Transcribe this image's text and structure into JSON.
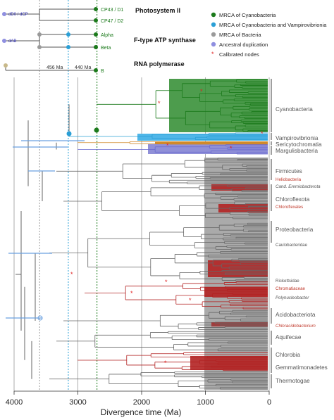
{
  "insets": {
    "labels": {
      "ps2": "Photosystem II",
      "atp": "F-type ATP synthase",
      "rnap": "RNA polymerase",
      "d0_dcp": "dD0 / dCP",
      "dab": "dAB",
      "cp43": "CP43 / D1",
      "cp47": "CP47 / D2",
      "alpha": "Alpha",
      "beta": "Beta",
      "b": "B",
      "age1": "456 Ma",
      "age2": "440 Ma"
    }
  },
  "legend": {
    "items": [
      {
        "label": "MRCA of Cyanobacteria",
        "color": "#1b7a1b",
        "shape": "circle"
      },
      {
        "label": "MRCA of Cyanobacteria and Vampirovibrionia",
        "color": "#2a9fd6",
        "shape": "circle"
      },
      {
        "label": "MRCA of Bacteria",
        "color": "#9a9a9a",
        "shape": "circle"
      },
      {
        "label": "Ancestral duplication",
        "color": "#8f8fe0",
        "shape": "circle"
      },
      {
        "label": "Calibrated nodes",
        "color": "#e02020",
        "shape": "star"
      }
    ]
  },
  "clades": [
    {
      "name": "Cyanobacteria",
      "color": "#555555",
      "style": "normal"
    },
    {
      "name": "Vampirovibrionia",
      "color": "#555555",
      "style": "normal"
    },
    {
      "name": "Sericytochromatia",
      "color": "#555555",
      "style": "normal"
    },
    {
      "name": "Margulisbacteria",
      "color": "#555555",
      "style": "normal"
    },
    {
      "name": "Firmicutes",
      "color": "#555555",
      "style": "normal"
    },
    {
      "name": "Heliobacteria",
      "color": "#c0392b",
      "style": "small"
    },
    {
      "name": "Cand. Eremiobacterota",
      "color": "#555555",
      "style": "small-italic"
    },
    {
      "name": "Chloroflexota",
      "color": "#555555",
      "style": "normal"
    },
    {
      "name": "Chloroflexales",
      "color": "#c0392b",
      "style": "small"
    },
    {
      "name": "Proteobacteria",
      "color": "#555555",
      "style": "normal"
    },
    {
      "name": "Caulobacteridae",
      "color": "#555555",
      "style": "small"
    },
    {
      "name": "Rickettsidae",
      "color": "#555555",
      "style": "small"
    },
    {
      "name": "Chromatiaceae",
      "color": "#c0392b",
      "style": "small"
    },
    {
      "name": "Polynucleobacter",
      "color": "#555555",
      "style": "small-italic"
    },
    {
      "name": "Acidobacteriota",
      "color": "#555555",
      "style": "normal"
    },
    {
      "name": "Chloracidobacterium",
      "color": "#c0392b",
      "style": "small-italic"
    },
    {
      "name": "Aquifecae",
      "color": "#555555",
      "style": "normal"
    },
    {
      "name": "Chlorobia",
      "color": "#555555",
      "style": "normal"
    },
    {
      "name": "Gemmatimonadetes",
      "color": "#555555",
      "style": "normal"
    },
    {
      "name": "Thermotogae",
      "color": "#555555",
      "style": "normal"
    }
  ],
  "chart_data": {
    "type": "tree",
    "xlabel": "Divergence time (Ma)",
    "xlim": [
      4000,
      0
    ],
    "xticks": [
      4000,
      3000,
      2000,
      1000,
      0
    ],
    "grid": "vertical at ticks",
    "reference_lines_ma": [
      {
        "value": 3600,
        "color": "#999999",
        "style": "dotted"
      },
      {
        "value": 3150,
        "color": "#2a9fd6",
        "style": "dotted"
      },
      {
        "value": 2700,
        "color": "#1b7a1b",
        "style": "dotted"
      }
    ],
    "key_nodes_ma": [
      {
        "label": "MRCA of Bacteria",
        "age": 3600
      },
      {
        "label": "MRCA of Cyanobacteria and Vampirovibrionia",
        "age": 3150
      },
      {
        "label": "MRCA of Cyanobacteria",
        "age": 2700
      }
    ],
    "root_error_bar_ma": [
      4000,
      3350
    ]
  },
  "colors": {
    "cyano": "#1b7a1b",
    "vampiro": "#2a9fd6",
    "bacteria": "#9a9a9a",
    "duplication": "#8f8fe0",
    "calibrated": "#e02020",
    "phototroph": "#b22222",
    "branch": "#555555",
    "margulis": "#8f8fe0",
    "sericyto": "#d08a2a"
  }
}
